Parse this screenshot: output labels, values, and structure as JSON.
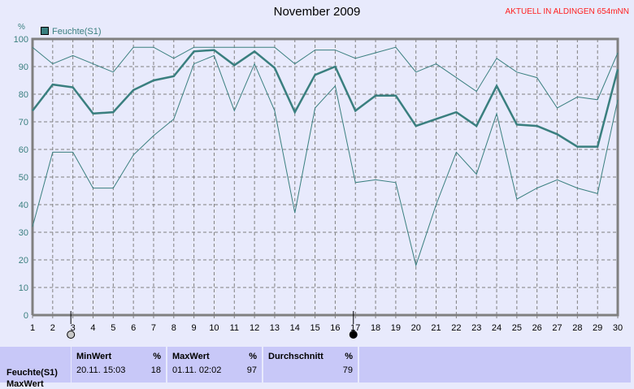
{
  "chart_data": {
    "type": "line",
    "title": "November 2009",
    "ylabel": "%",
    "ylim": [
      0,
      100
    ],
    "yticks": [
      0,
      10,
      20,
      30,
      40,
      50,
      60,
      70,
      80,
      90,
      100
    ],
    "x": [
      1,
      2,
      3,
      4,
      5,
      6,
      7,
      8,
      9,
      10,
      11,
      12,
      13,
      14,
      15,
      16,
      17,
      18,
      19,
      20,
      21,
      22,
      23,
      24,
      25,
      26,
      27,
      28,
      29,
      30
    ],
    "grid": true,
    "legend": "top-left",
    "series": [
      {
        "name": "Feuchte(S1)",
        "role": "average",
        "color": "#3a7f7f",
        "values": [
          74,
          83.5,
          82.5,
          73,
          73.5,
          81.5,
          85,
          86.5,
          95.5,
          96,
          90.5,
          95.5,
          89.5,
          73.5,
          87,
          90,
          74,
          79.5,
          79.5,
          68.5,
          71,
          73.5,
          68.5,
          83,
          69,
          68.5,
          65.5,
          61,
          61,
          89
        ]
      },
      {
        "role": "max",
        "color": "#3a7f7f",
        "values": [
          97,
          91,
          94,
          91,
          88,
          97,
          97,
          93,
          97,
          97,
          97,
          97,
          97,
          91,
          96,
          96,
          93,
          95,
          97,
          88,
          91,
          86,
          81,
          93,
          88,
          86,
          75,
          79,
          78,
          95
        ]
      },
      {
        "role": "min",
        "color": "#3a7f7f",
        "values": [
          32,
          59,
          59,
          46,
          46,
          58,
          65,
          71,
          91,
          94,
          74,
          91,
          74,
          37,
          75,
          83,
          48,
          49,
          48,
          18,
          40,
          59,
          51,
          73,
          42,
          46,
          49,
          46,
          44,
          78
        ]
      }
    ],
    "moon_phases": [
      {
        "day": 2.9,
        "phase": "first-quarter"
      },
      {
        "day": 16.9,
        "phase": "full-moon"
      }
    ]
  },
  "header": {
    "station": "AKTUELL IN ALDINGEN 654mNN"
  },
  "stats": {
    "row_label": "Feuchte(S1)",
    "row_label2": "MaxWert",
    "min": {
      "label": "MinWert",
      "unit": "%",
      "time": "20.11.  15:03",
      "value": "18"
    },
    "max": {
      "label": "MaxWert",
      "unit": "%",
      "time": "01.11.  02:02",
      "value": "97"
    },
    "avg": {
      "label": "Durchschnitt",
      "unit": "%",
      "value": "79"
    }
  }
}
